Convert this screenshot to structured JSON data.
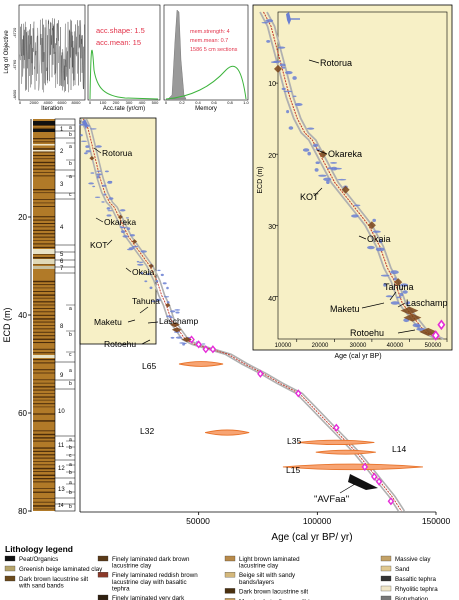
{
  "panels": {
    "iterations": {
      "ylabel": "Log of Objective",
      "xlabel": "Iteration",
      "yticks": [
        "-4800",
        "-4760",
        "-4720"
      ],
      "xticks": [
        "0",
        "2000",
        "4000",
        "6000",
        "8000"
      ]
    },
    "accrate": {
      "xlabel": "Acc.rate (yr/cm)",
      "xticks": [
        "0",
        "100",
        "200",
        "300",
        "400",
        "500"
      ],
      "shape_label": "acc.shape: 1.5",
      "mean_label": "acc.mean: 15"
    },
    "memory": {
      "xlabel": "Memory",
      "xticks": [
        "0",
        "0.2",
        "0.4",
        "0.6",
        "0.8",
        "1.0"
      ],
      "strength_label": "mem.strength: 4",
      "mean_label": "mem.mean: 0.7",
      "sections_label": "1586 5 cm sections"
    }
  },
  "chart_data": {
    "type": "scatter",
    "xlabel": "Age (cal yr BP/ yr)",
    "ylabel": "ECD (m)",
    "xlim": [
      0,
      150000
    ],
    "ylim": [
      0,
      80
    ],
    "xticks": [
      "50000",
      "100000",
      "150000"
    ],
    "yticks": [
      "20",
      "40",
      "60",
      "80"
    ],
    "age_model": [
      [
        1000,
        0
      ],
      [
        3000,
        2
      ],
      [
        4000,
        4
      ],
      [
        5000,
        6
      ],
      [
        6000,
        8
      ],
      [
        7000,
        10
      ],
      [
        8000,
        12
      ],
      [
        10000,
        15
      ],
      [
        12000,
        17
      ],
      [
        14000,
        18
      ],
      [
        16000,
        20
      ],
      [
        18000,
        22
      ],
      [
        20000,
        24
      ],
      [
        23000,
        26
      ],
      [
        26000,
        28
      ],
      [
        29000,
        30
      ],
      [
        32000,
        33
      ],
      [
        34000,
        36
      ],
      [
        36000,
        38
      ],
      [
        38000,
        41
      ],
      [
        41000,
        43
      ],
      [
        44000,
        45
      ],
      [
        48000,
        46
      ],
      [
        55000,
        47
      ],
      [
        62000,
        48
      ],
      [
        69000,
        50
      ],
      [
        77000,
        52
      ],
      [
        84000,
        54
      ],
      [
        92000,
        56
      ],
      [
        98000,
        59
      ],
      [
        104000,
        62
      ],
      [
        110000,
        65
      ],
      [
        116000,
        68
      ],
      [
        121000,
        71
      ],
      [
        126000,
        74
      ],
      [
        131000,
        77
      ],
      [
        135000,
        80
      ]
    ],
    "tephra_labels": [
      {
        "name": "Rotorua",
        "age": 5000,
        "depth": 8
      },
      {
        "name": "Okareka",
        "age": 17000,
        "depth": 20
      },
      {
        "name": "KOT",
        "age": 23000,
        "depth": 25
      },
      {
        "name": "Okaia",
        "age": 30000,
        "depth": 30
      },
      {
        "name": "Tahuna",
        "age": 37000,
        "depth": 38
      },
      {
        "name": "Maketu",
        "age": 40000,
        "depth": 42
      },
      {
        "name": "Laschamp",
        "age": 40800,
        "depth": 43
      },
      {
        "name": "Rotoehu",
        "age": 45000,
        "depth": 45
      }
    ],
    "dated_layers": [
      {
        "name": "L65",
        "age": 51000,
        "depth": 50
      },
      {
        "name": "L32",
        "age": 62000,
        "depth": 64
      },
      {
        "name": "L35",
        "age": 108000,
        "depth": 66
      },
      {
        "name": "L14",
        "age": 112000,
        "depth": 68
      },
      {
        "name": "L15",
        "age": 115000,
        "depth": 71
      }
    ],
    "annotation": "\"AVFaa\"",
    "inset": {
      "xlabel": "Age (cal yr BP)",
      "ylabel": "ECD (m)",
      "xticks": [
        "10000",
        "20000",
        "30000",
        "40000",
        "50000"
      ],
      "yticks": [
        "10",
        "20",
        "30",
        "40"
      ],
      "xlim": [
        5000,
        50000
      ],
      "ylim": [
        0,
        46
      ]
    },
    "stratigraphy_units": [
      "1",
      "2",
      "3",
      "4",
      "5",
      "6",
      "7",
      "8",
      "9",
      "10",
      "11",
      "12",
      "13",
      "14"
    ],
    "stratigraphy_subunits": [
      "a",
      "b",
      "c"
    ]
  },
  "legend": {
    "title": "Lithology legend",
    "items": [
      {
        "label": "Peat/Organics",
        "color": "#111111"
      },
      {
        "label": "Greenish beige laminated clay",
        "color": "#b6a46a"
      },
      {
        "label": "Dark brown lacustrine silt with sand bands",
        "color": "#6b4a1c"
      },
      {
        "label": "Finely laminated dark brown lacustrine clay",
        "color": "#5a3a18"
      },
      {
        "label": "Finely laminated reddish brown lacustrine clay with basaltic tephra",
        "color": "#8b3a2a"
      },
      {
        "label": "Finely laminated very dark brown lacustrine clay",
        "color": "#2f2010"
      },
      {
        "label": "Light brown laminated lacustrine clay",
        "color": "#b88a4a"
      },
      {
        "label": "Beige silt with sandy bands/layers",
        "color": "#d4b87c"
      },
      {
        "label": "Dark brown lacustrine silt",
        "color": "#4a3010"
      },
      {
        "label": "Massive beige/brown silt to clay",
        "color": "#c8a060"
      },
      {
        "label": "Massive clay",
        "color": "#c3a267"
      },
      {
        "label": "Sand",
        "color": "#e0c890"
      },
      {
        "label": "Basaltic tephra",
        "color": "#333333"
      },
      {
        "label": "Rhyolitic tephra",
        "color": "#f0e6c8"
      },
      {
        "label": "Bioturbation",
        "color": "#777777"
      }
    ]
  },
  "colors": {
    "inset_bg": "#f7f0c6",
    "model": "#c0392b",
    "diamond": "#7a4419",
    "dated": "#e8742c",
    "magenta": "#e52bd8",
    "blue": "#6a7fd2",
    "core": "#b17a28"
  }
}
